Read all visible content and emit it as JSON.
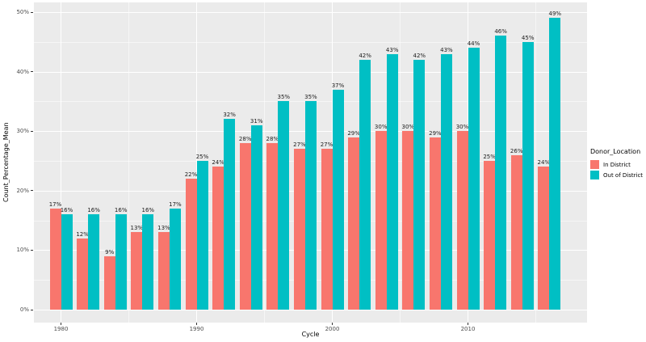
{
  "chart_data": {
    "type": "bar",
    "title": "",
    "xlabel": "Cycle",
    "ylabel": "Count_Percentage_Mean",
    "legend_title": "Donor_Location",
    "legend_position": "right",
    "grid": true,
    "panel_bg": "#EBEBEB",
    "gridline_color": "#FFFFFF",
    "value_suffix": "%",
    "categories": [
      1980,
      1982,
      1984,
      1986,
      1988,
      1990,
      1992,
      1994,
      1996,
      1998,
      2000,
      2002,
      2004,
      2006,
      2008,
      2010,
      2012,
      2014,
      2016
    ],
    "series": [
      {
        "name": "In District",
        "color": "#F8766D",
        "values": [
          17,
          12,
          9,
          13,
          13,
          22,
          24,
          28,
          28,
          27,
          27,
          29,
          30,
          30,
          29,
          30,
          25,
          26,
          24
        ]
      },
      {
        "name": "Out of District",
        "color": "#00BFC4",
        "values": [
          16,
          16,
          16,
          16,
          17,
          25,
          32,
          31,
          35,
          35,
          37,
          42,
          43,
          42,
          43,
          44,
          46,
          45,
          49
        ]
      }
    ],
    "ylim": [
      0,
      50
    ],
    "y_ticks": [
      {
        "value": 0,
        "label": "0%"
      },
      {
        "value": 10,
        "label": "10%"
      },
      {
        "value": 20,
        "label": "20%"
      },
      {
        "value": 30,
        "label": "30%"
      },
      {
        "value": 40,
        "label": "40%"
      },
      {
        "value": 50,
        "label": "50%"
      }
    ],
    "y_minor": [
      5,
      15,
      25,
      35,
      45
    ],
    "x_ticks": [
      {
        "value": 1980,
        "label": "1980"
      },
      {
        "value": 1990,
        "label": "1990"
      },
      {
        "value": 2000,
        "label": "2000"
      },
      {
        "value": 2010,
        "label": "2010"
      }
    ],
    "x_minor": [
      1985,
      1995,
      2005,
      2015
    ]
  }
}
